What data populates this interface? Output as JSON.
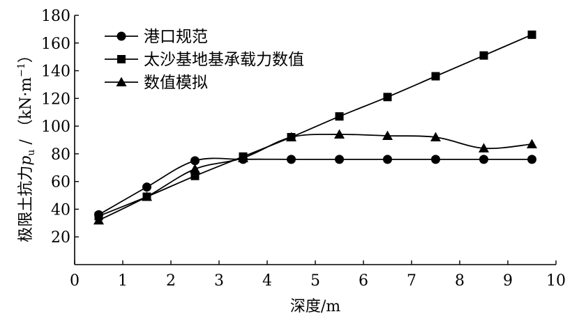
{
  "chart_data": {
    "type": "line",
    "xlabel": "深度/m",
    "ylabel": "极限土抗力p_u / (kN·m⁻¹)",
    "ylabel_parts": {
      "prefix": "极限土抗力",
      "symbol": "p",
      "subscript": "u",
      "slash": " / ",
      "unit_open": "（kN·m",
      "unit_exp": "−1",
      "unit_close": "）"
    },
    "xlim": [
      0,
      10
    ],
    "ylim": [
      0,
      180
    ],
    "xticks": [
      0,
      1,
      2,
      3,
      4,
      5,
      6,
      7,
      8,
      9,
      10
    ],
    "yticks": [
      20,
      40,
      60,
      80,
      100,
      120,
      140,
      160,
      180
    ],
    "grid": false,
    "legend_position": "top-left",
    "series": [
      {
        "name": "港口规范",
        "marker": "circle",
        "color": "#000000",
        "x": [
          0.5,
          1.5,
          2.5,
          3.5,
          4.5,
          5.5,
          6.5,
          7.5,
          8.5,
          9.5
        ],
        "y": [
          36,
          56,
          75,
          76,
          76,
          76,
          76,
          76,
          76,
          76
        ]
      },
      {
        "name": "太沙基地基承载力数值",
        "marker": "square",
        "color": "#000000",
        "x": [
          0.5,
          1.5,
          2.5,
          3.5,
          4.5,
          5.5,
          6.5,
          7.5,
          8.5,
          9.5
        ],
        "y": [
          35,
          49,
          64,
          78,
          92,
          107,
          121,
          136,
          151,
          166
        ]
      },
      {
        "name": "数值模拟",
        "marker": "triangle",
        "color": "#000000",
        "x": [
          0.5,
          1.5,
          2.5,
          3.5,
          4.5,
          5.5,
          6.5,
          7.5,
          8.5,
          9.5
        ],
        "y": [
          32,
          49,
          69,
          77,
          92,
          94,
          93,
          92,
          84,
          87
        ]
      }
    ]
  }
}
